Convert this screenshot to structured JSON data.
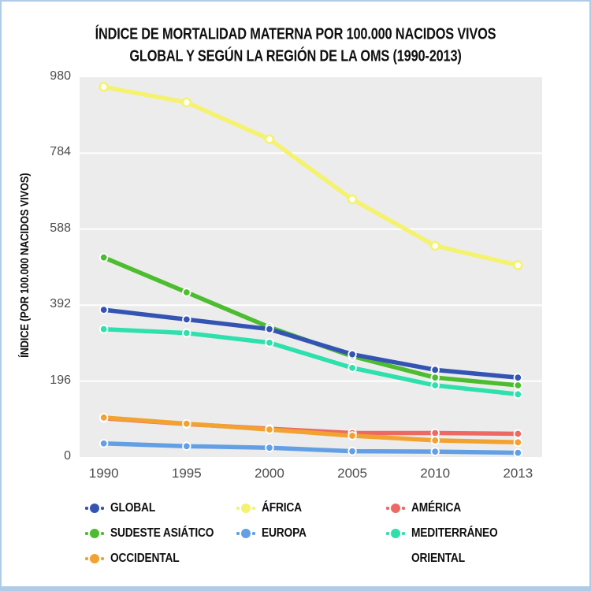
{
  "title": {
    "line1": "ÍNDICE DE MORTALIDAD MATERNA POR 100.000 NACIDOS VIVOS",
    "line2": "GLOBAL Y SEGÚN LA REGIÓN DE LA OMS (1990-2013)"
  },
  "y_axis_title": "ÍNDICE (POR 100.000 NACIDOS VIVOS)",
  "colors": {
    "plot_background": "#ececec",
    "gridline": "#ffffff",
    "tick_text": "#4d4d4d",
    "title_text": "#0f0f0f",
    "page_border": "#aecbe7",
    "global": "#3454b4",
    "africa": "#f4f26e",
    "america": "#ec6a63",
    "sudeste_asiatico": "#4dbd30",
    "europa": "#639fe5",
    "mediterraneo_oriental": "#2de0ac",
    "occidental": "#f2a231"
  },
  "chart_data": {
    "type": "line",
    "title": "ÍNDICE DE MORTALIDAD MATERNA POR 100.000 NACIDOS VIVOS GLOBAL Y SEGÚN LA REGIÓN DE LA OMS (1990-2013)",
    "xlabel": "",
    "ylabel": "ÍNDICE (POR 100.000 NACIDOS VIVOS)",
    "categories": [
      "1990",
      "1995",
      "2000",
      "2005",
      "2010",
      "2013"
    ],
    "y_ticks": [
      980,
      784,
      588,
      392,
      196,
      0
    ],
    "ylim": [
      0,
      980
    ],
    "grid": true,
    "legend_position": "bottom",
    "series": [
      {
        "name": "ÁFRICA",
        "color": "#f4f26e",
        "hollow_markers": true,
        "values": [
          955,
          915,
          820,
          665,
          545,
          495
        ]
      },
      {
        "name": "SUDESTE ASIÁTICO",
        "color": "#4dbd30",
        "hollow_markers": false,
        "values": [
          515,
          425,
          335,
          260,
          205,
          185
        ]
      },
      {
        "name": "MEDITERRÁNEO ORIENTAL",
        "color": "#2de0ac",
        "hollow_markers": false,
        "values": [
          330,
          320,
          295,
          230,
          185,
          162
        ]
      },
      {
        "name": "GLOBAL",
        "color": "#3454b4",
        "hollow_markers": false,
        "values": [
          380,
          355,
          330,
          265,
          225,
          205
        ]
      },
      {
        "name": "AMÉRICA",
        "color": "#ec6a63",
        "hollow_markers": false,
        "values": [
          100,
          85,
          73,
          62,
          62,
          60
        ]
      },
      {
        "name": "OCCIDENTAL",
        "color": "#f2a231",
        "hollow_markers": false,
        "values": [
          102,
          86,
          71,
          55,
          43,
          38
        ]
      },
      {
        "name": "EUROPA",
        "color": "#639fe5",
        "hollow_markers": false,
        "values": [
          35,
          28,
          24,
          15,
          14,
          11
        ]
      }
    ]
  },
  "legend": {
    "items": [
      {
        "label": "GLOBAL",
        "color": "#3454b4",
        "col": 0,
        "row": 0
      },
      {
        "label": "SUDESTE ASIÁTICO",
        "color": "#4dbd30",
        "col": 0,
        "row": 1
      },
      {
        "label": "OCCIDENTAL",
        "color": "#f2a231",
        "col": 0,
        "row": 2
      },
      {
        "label": "ÁFRICA",
        "color": "#f4f26e",
        "col": 1,
        "row": 0
      },
      {
        "label": "EUROPA",
        "color": "#639fe5",
        "col": 1,
        "row": 1
      },
      {
        "label": "AMÉRICA",
        "color": "#ec6a63",
        "col": 2,
        "row": 0
      },
      {
        "label": "MEDITERRÁNEO",
        "label2": "ORIENTAL",
        "color": "#2de0ac",
        "col": 2,
        "row": 1
      }
    ]
  }
}
